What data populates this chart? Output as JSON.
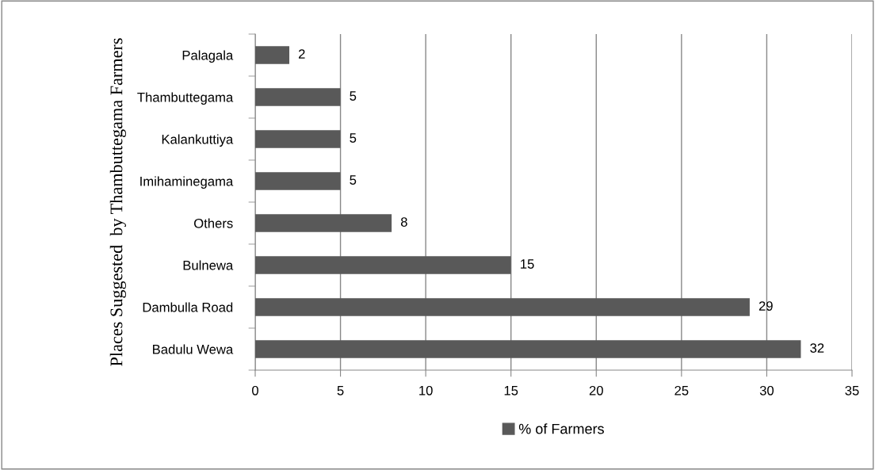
{
  "chart_data": {
    "type": "bar",
    "orientation": "horizontal",
    "ylabel": "Places Suggested  by Thambuttegama Farmers",
    "categories": [
      "Palagala",
      "Thambuttegama",
      "Kalankuttiya",
      "Imihaminegama",
      "Others",
      "Bulnewa",
      "Dambulla Road",
      "Badulu Wewa"
    ],
    "series": [
      {
        "name": "% of Farmers",
        "color": "#595959",
        "values": [
          2,
          5,
          5,
          5,
          8,
          15,
          29,
          32
        ]
      }
    ],
    "xlim": [
      0,
      35
    ],
    "xticks": [
      0,
      5,
      10,
      15,
      20,
      25,
      30,
      35
    ],
    "grid": "x",
    "legend": "bottom",
    "data_labels": true
  }
}
